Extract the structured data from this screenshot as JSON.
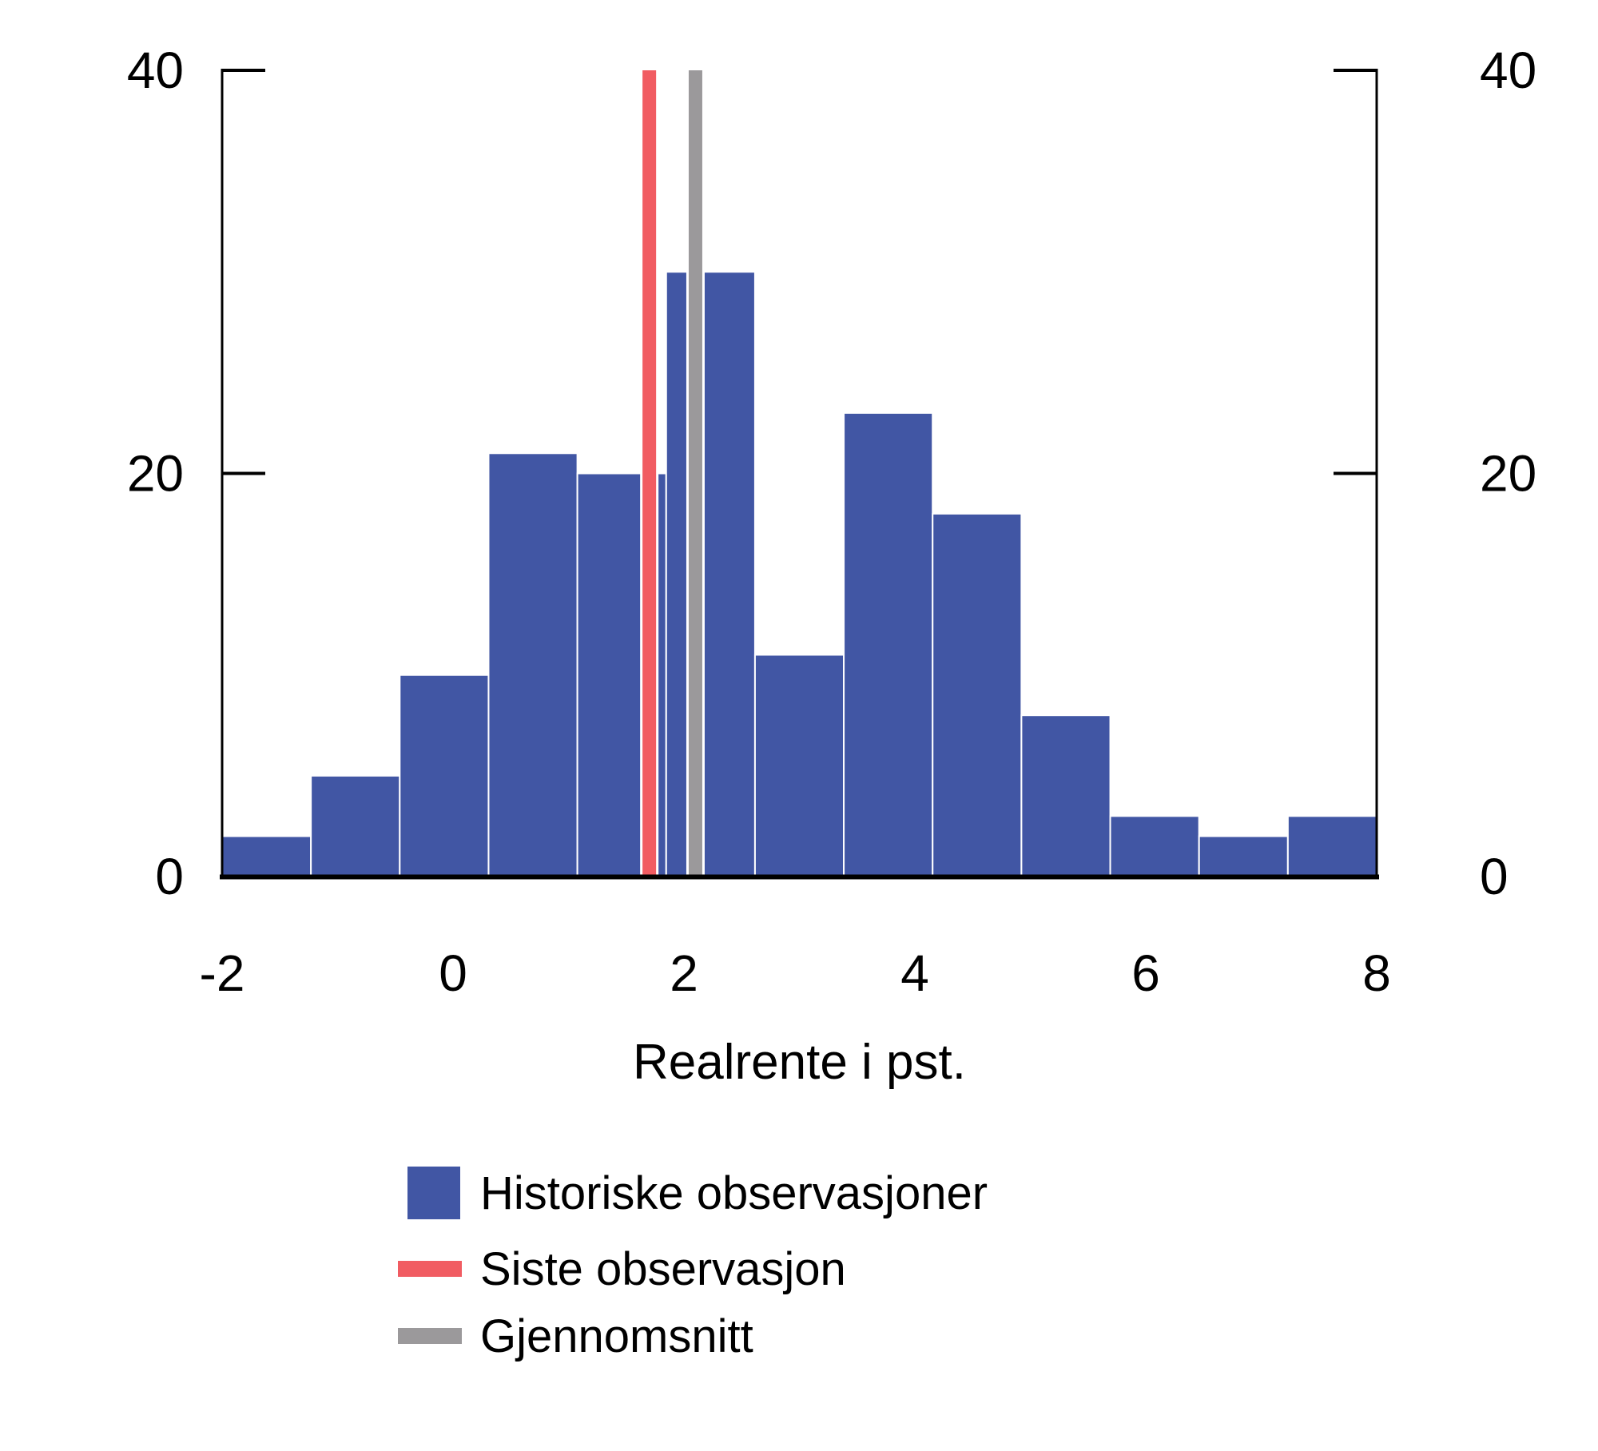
{
  "chart_data": {
    "type": "bar",
    "subtype": "histogram",
    "title": "",
    "xlabel": "Realrente i pst.",
    "ylabel": "",
    "xlim": [
      -2,
      8
    ],
    "ylim": [
      0,
      40
    ],
    "xticks": [
      "-2",
      "0",
      "2",
      "4",
      "6",
      "8"
    ],
    "xtick_values": [
      -2,
      0,
      2,
      4,
      6,
      8
    ],
    "yticks_left": [
      "40",
      "20",
      "0"
    ],
    "yticks_right": [
      "40",
      "20",
      "0"
    ],
    "ytick_values": [
      40,
      20,
      0
    ],
    "grid": false,
    "bins": {
      "start": -2,
      "end": 8,
      "count": 13
    },
    "values": [
      2,
      5,
      10,
      21,
      20,
      30,
      11,
      23,
      18,
      8,
      3,
      2,
      3
    ],
    "bar_color": "#4156A4",
    "vlines": [
      {
        "name": "siste-observasjon",
        "x": 1.7,
        "color": "#F15C62"
      },
      {
        "name": "gjennomsnitt",
        "x": 2.1,
        "color": "#9B999B"
      }
    ],
    "legend_position": "bottom-center",
    "legend": [
      {
        "label": "Historiske observasjoner",
        "swatch": "square",
        "color": "#4156A4"
      },
      {
        "label": "Siste observasjon",
        "swatch": "line",
        "color": "#F15C62"
      },
      {
        "label": "Gjennomsnitt",
        "swatch": "line",
        "color": "#9B999B"
      }
    ],
    "axis_color": "#000000",
    "background": "#ffffff"
  }
}
